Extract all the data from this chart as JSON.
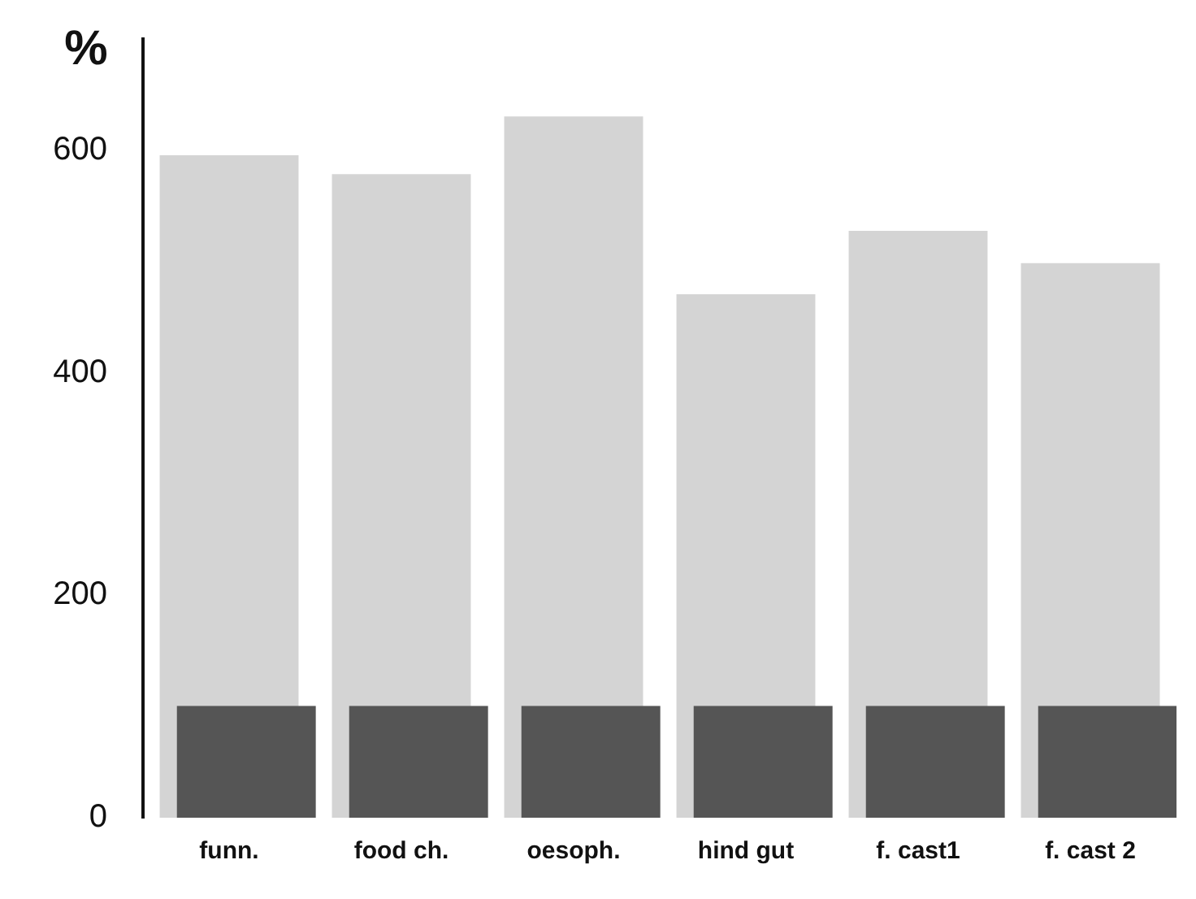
{
  "chart_data": {
    "type": "bar",
    "ylabel": "%",
    "categories": [
      "funn.",
      "food ch.",
      "oesoph.",
      "hind gut",
      "f. cast1",
      "f. cast 2"
    ],
    "series": [
      {
        "color": "#d4d4d4",
        "values": [
          595,
          578,
          630,
          470,
          527,
          498
        ]
      },
      {
        "color": "#555555",
        "values": [
          100,
          100,
          100,
          100,
          100,
          100
        ]
      }
    ],
    "ylim": [
      0,
      700
    ],
    "yticks": [
      0,
      200,
      400,
      600
    ],
    "grid": false,
    "legend": false
  }
}
